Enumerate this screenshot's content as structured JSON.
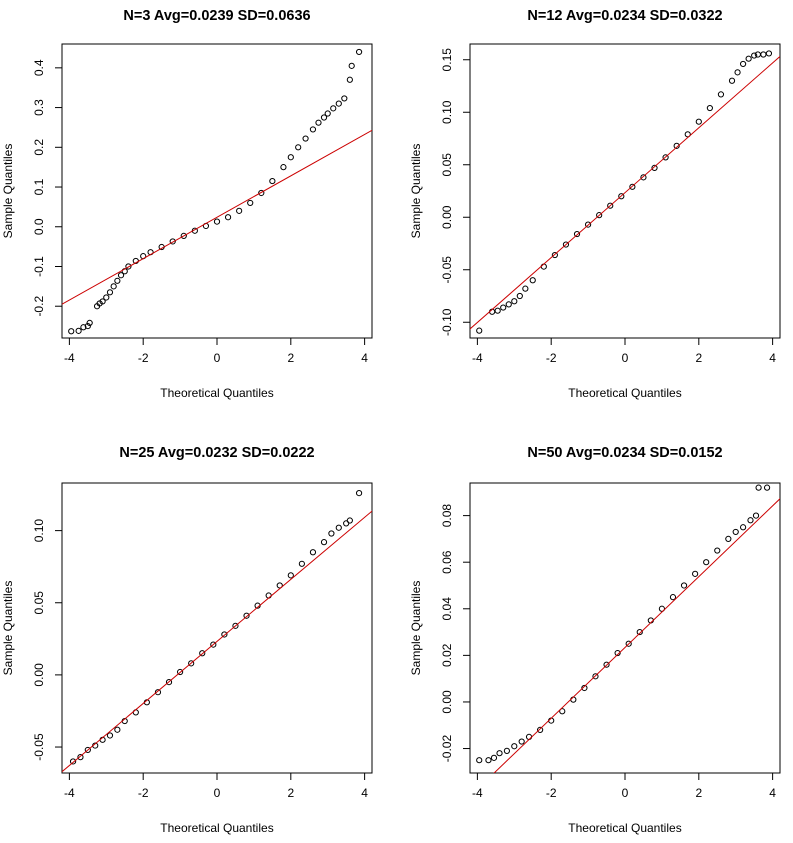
{
  "figure": {
    "type": "qq-plot-grid",
    "colors": {
      "points": "#000000",
      "reference_line": "#cc0000",
      "frame": "#000000",
      "background": "#ffffff"
    }
  },
  "chart_data": [
    {
      "type": "scatter",
      "title": "N=3 Avg=0.0239 SD=0.0636",
      "xlabel": "Theoretical Quantiles",
      "ylabel": "Sample Quantiles",
      "xlim": [
        -4.2,
        4.2
      ],
      "ylim": [
        -0.28,
        0.46
      ],
      "xticks": [
        -4,
        -2,
        0,
        2,
        4
      ],
      "yticks": [
        -0.2,
        -0.1,
        0.0,
        0.1,
        0.2,
        0.3,
        0.4
      ],
      "ytick_labels": [
        "-0.2",
        "-0.1",
        "0.0",
        "0.1",
        "0.2",
        "0.3",
        "0.4"
      ],
      "grid": false,
      "reference_line": {
        "intercept": 0.0239,
        "slope": 0.0521
      },
      "points": [
        [
          -3.95,
          -0.263
        ],
        [
          -3.75,
          -0.262
        ],
        [
          -3.62,
          -0.253
        ],
        [
          -3.5,
          -0.25
        ],
        [
          -3.45,
          -0.242
        ],
        [
          -3.25,
          -0.2
        ],
        [
          -3.18,
          -0.193
        ],
        [
          -3.1,
          -0.188
        ],
        [
          -3.0,
          -0.178
        ],
        [
          -2.9,
          -0.165
        ],
        [
          -2.8,
          -0.15
        ],
        [
          -2.7,
          -0.136
        ],
        [
          -2.6,
          -0.122
        ],
        [
          -2.5,
          -0.112
        ],
        [
          -2.4,
          -0.1
        ],
        [
          -2.2,
          -0.086
        ],
        [
          -2.0,
          -0.074
        ],
        [
          -1.8,
          -0.064
        ],
        [
          -1.5,
          -0.051
        ],
        [
          -1.2,
          -0.037
        ],
        [
          -0.9,
          -0.023
        ],
        [
          -0.6,
          -0.01
        ],
        [
          -0.3,
          0.002
        ],
        [
          0.0,
          0.013
        ],
        [
          0.3,
          0.024
        ],
        [
          0.6,
          0.04
        ],
        [
          0.9,
          0.06
        ],
        [
          1.2,
          0.085
        ],
        [
          1.5,
          0.115
        ],
        [
          1.8,
          0.15
        ],
        [
          2.0,
          0.175
        ],
        [
          2.2,
          0.2
        ],
        [
          2.4,
          0.222
        ],
        [
          2.6,
          0.245
        ],
        [
          2.75,
          0.262
        ],
        [
          2.9,
          0.275
        ],
        [
          3.0,
          0.285
        ],
        [
          3.15,
          0.298
        ],
        [
          3.3,
          0.31
        ],
        [
          3.45,
          0.323
        ],
        [
          3.6,
          0.37
        ],
        [
          3.65,
          0.405
        ],
        [
          3.85,
          0.44
        ]
      ]
    },
    {
      "type": "scatter",
      "title": "N=12 Avg=0.0234 SD=0.0322",
      "xlabel": "Theoretical Quantiles",
      "ylabel": "Sample Quantiles",
      "xlim": [
        -4.2,
        4.2
      ],
      "ylim": [
        -0.115,
        0.165
      ],
      "xticks": [
        -4,
        -2,
        0,
        2,
        4
      ],
      "yticks": [
        -0.1,
        -0.05,
        0.0,
        0.05,
        0.1,
        0.15
      ],
      "ytick_labels": [
        "-0.10",
        "-0.05",
        "0.00",
        "0.05",
        "0.10",
        "0.15"
      ],
      "grid": false,
      "reference_line": {
        "intercept": 0.0234,
        "slope": 0.0309
      },
      "points": [
        [
          -3.95,
          -0.108
        ],
        [
          -3.6,
          -0.09
        ],
        [
          -3.45,
          -0.089
        ],
        [
          -3.3,
          -0.086
        ],
        [
          -3.15,
          -0.083
        ],
        [
          -3.0,
          -0.08
        ],
        [
          -2.85,
          -0.075
        ],
        [
          -2.7,
          -0.068
        ],
        [
          -2.5,
          -0.06
        ],
        [
          -2.2,
          -0.047
        ],
        [
          -1.9,
          -0.036
        ],
        [
          -1.6,
          -0.026
        ],
        [
          -1.3,
          -0.016
        ],
        [
          -1.0,
          -0.007
        ],
        [
          -0.7,
          0.002
        ],
        [
          -0.4,
          0.011
        ],
        [
          -0.1,
          0.02
        ],
        [
          0.2,
          0.029
        ],
        [
          0.5,
          0.038
        ],
        [
          0.8,
          0.047
        ],
        [
          1.1,
          0.057
        ],
        [
          1.4,
          0.068
        ],
        [
          1.7,
          0.079
        ],
        [
          2.0,
          0.091
        ],
        [
          2.3,
          0.104
        ],
        [
          2.6,
          0.117
        ],
        [
          2.9,
          0.13
        ],
        [
          3.05,
          0.138
        ],
        [
          3.2,
          0.146
        ],
        [
          3.35,
          0.151
        ],
        [
          3.5,
          0.154
        ],
        [
          3.6,
          0.155
        ],
        [
          3.75,
          0.155
        ],
        [
          3.9,
          0.156
        ]
      ]
    },
    {
      "type": "scatter",
      "title": "N=25 Avg=0.0232 SD=0.0222",
      "xlabel": "Theoretical Quantiles",
      "ylabel": "Sample Quantiles",
      "xlim": [
        -4.2,
        4.2
      ],
      "ylim": [
        -0.068,
        0.133
      ],
      "xticks": [
        -4,
        -2,
        0,
        2,
        4
      ],
      "yticks": [
        -0.05,
        0.0,
        0.05,
        0.1
      ],
      "ytick_labels": [
        "-0.05",
        "0.00",
        "0.05",
        "0.10"
      ],
      "grid": false,
      "reference_line": {
        "intercept": 0.0232,
        "slope": 0.0215
      },
      "points": [
        [
          -3.9,
          -0.06
        ],
        [
          -3.7,
          -0.057
        ],
        [
          -3.5,
          -0.052
        ],
        [
          -3.3,
          -0.049
        ],
        [
          -3.1,
          -0.045
        ],
        [
          -2.9,
          -0.042
        ],
        [
          -2.7,
          -0.038
        ],
        [
          -2.5,
          -0.032
        ],
        [
          -2.2,
          -0.026
        ],
        [
          -1.9,
          -0.019
        ],
        [
          -1.6,
          -0.012
        ],
        [
          -1.3,
          -0.005
        ],
        [
          -1.0,
          0.002
        ],
        [
          -0.7,
          0.008
        ],
        [
          -0.4,
          0.015
        ],
        [
          -0.1,
          0.021
        ],
        [
          0.2,
          0.028
        ],
        [
          0.5,
          0.034
        ],
        [
          0.8,
          0.041
        ],
        [
          1.1,
          0.048
        ],
        [
          1.4,
          0.055
        ],
        [
          1.7,
          0.062
        ],
        [
          2.0,
          0.069
        ],
        [
          2.3,
          0.077
        ],
        [
          2.6,
          0.085
        ],
        [
          2.9,
          0.092
        ],
        [
          3.1,
          0.098
        ],
        [
          3.3,
          0.102
        ],
        [
          3.5,
          0.105
        ],
        [
          3.6,
          0.107
        ],
        [
          3.85,
          0.126
        ]
      ]
    },
    {
      "type": "scatter",
      "title": "N=50 Avg=0.0234 SD=0.0152",
      "xlabel": "Theoretical Quantiles",
      "ylabel": "Sample Quantiles",
      "xlim": [
        -4.2,
        4.2
      ],
      "ylim": [
        -0.0305,
        0.094
      ],
      "xticks": [
        -4,
        -2,
        0,
        2,
        4
      ],
      "yticks": [
        -0.02,
        0.0,
        0.02,
        0.04,
        0.06,
        0.08
      ],
      "ytick_labels": [
        "-0.02",
        "0.00",
        "0.02",
        "0.04",
        "0.06",
        "0.08"
      ],
      "grid": false,
      "reference_line": {
        "intercept": 0.0234,
        "slope": 0.0152
      },
      "points": [
        [
          -3.95,
          -0.025
        ],
        [
          -3.7,
          -0.025
        ],
        [
          -3.55,
          -0.024
        ],
        [
          -3.4,
          -0.022
        ],
        [
          -3.2,
          -0.021
        ],
        [
          -3.0,
          -0.019
        ],
        [
          -2.8,
          -0.017
        ],
        [
          -2.6,
          -0.015
        ],
        [
          -2.3,
          -0.012
        ],
        [
          -2.0,
          -0.008
        ],
        [
          -1.7,
          -0.004
        ],
        [
          -1.4,
          0.001
        ],
        [
          -1.1,
          0.006
        ],
        [
          -0.8,
          0.011
        ],
        [
          -0.5,
          0.016
        ],
        [
          -0.2,
          0.021
        ],
        [
          0.1,
          0.025
        ],
        [
          0.4,
          0.03
        ],
        [
          0.7,
          0.035
        ],
        [
          1.0,
          0.04
        ],
        [
          1.3,
          0.045
        ],
        [
          1.6,
          0.05
        ],
        [
          1.9,
          0.055
        ],
        [
          2.2,
          0.06
        ],
        [
          2.5,
          0.065
        ],
        [
          2.8,
          0.07
        ],
        [
          3.0,
          0.073
        ],
        [
          3.2,
          0.075
        ],
        [
          3.4,
          0.078
        ],
        [
          3.55,
          0.08
        ],
        [
          3.62,
          0.092
        ],
        [
          3.85,
          0.092
        ]
      ]
    }
  ]
}
